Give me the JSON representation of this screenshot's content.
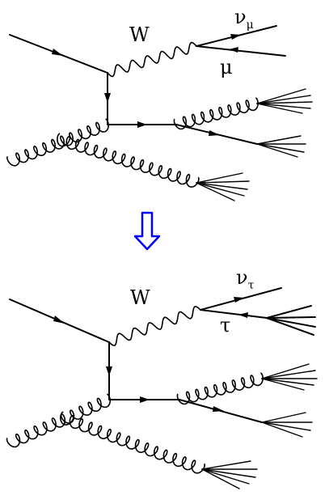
{
  "diagrams": [
    {
      "id": "top",
      "boson": "W",
      "neutrino_base": "ν",
      "neutrino_sub": "μ",
      "lepton": "μ"
    },
    {
      "id": "bottom",
      "boson": "W",
      "neutrino_base": "ν",
      "neutrino_sub": "τ",
      "lepton": "τ"
    }
  ],
  "transition_arrow": {
    "color": "#0000ff",
    "direction": "down"
  }
}
